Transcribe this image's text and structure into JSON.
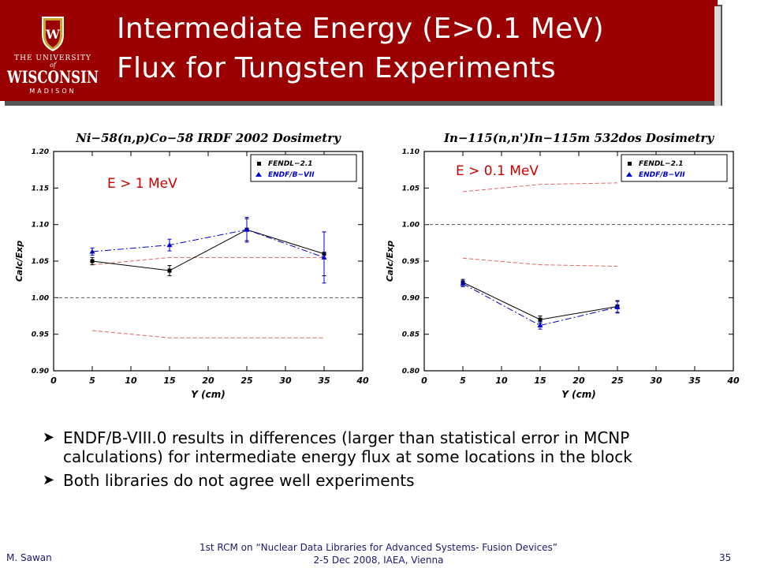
{
  "slide": {
    "title_line1": "Intermediate Energy (E>0.1 MeV)",
    "title_line2": "Flux for Tungsten Experiments",
    "banner_color": "#9b0000"
  },
  "logo": {
    "top_text": "THE UNIVERSITY",
    "of_text": "of",
    "name_text": "WISCONSIN",
    "bottom_text": "MADISON",
    "crest_letter": "W"
  },
  "bullets": [
    {
      "text": "ENDF/B-VIII.0 results in differences (larger than statistical error in MCNP calculations) for intermediate energy flux at some locations in the block"
    },
    {
      "text": "Both libraries do not agree well experiments"
    }
  ],
  "footer": {
    "author": "M. Sawan",
    "conference_line1": "1st RCM on “Nuclear Data Libraries for Advanced Systems- Fusion Devices”",
    "conference_line2": "2-5 Dec 2008, IAEA, Vienna",
    "page": "35"
  },
  "colors": {
    "fendl": "#000000",
    "endf": "#0000cc",
    "band": "#e06060",
    "reference": "#555555"
  },
  "chart_data": [
    {
      "type": "line",
      "title": "Ni−58(n,p)Co−58 IRDF 2002 Dosimetry",
      "annotation": "E > 1 MeV",
      "xlabel": "Y (cm)",
      "ylabel": "Calc/Exp",
      "xlim": [
        0,
        40
      ],
      "ylim": [
        0.9,
        1.2
      ],
      "xticks": [
        0,
        5,
        10,
        15,
        20,
        25,
        30,
        35,
        40
      ],
      "yticks": [
        0.9,
        0.95,
        1.0,
        1.05,
        1.1,
        1.15,
        1.2
      ],
      "reference_line": 1.0,
      "legend_position": "top-right",
      "series": [
        {
          "name": "FENDL−2.1",
          "style": "fendl",
          "x": [
            5,
            15,
            25,
            35
          ],
          "y": [
            1.05,
            1.037,
            1.093,
            1.06
          ],
          "err": [
            0.005,
            0.007,
            0.015,
            0.03
          ]
        },
        {
          "name": "ENDF/B−VII",
          "style": "endf",
          "x": [
            5,
            15,
            25,
            35
          ],
          "y": [
            1.063,
            1.072,
            1.093,
            1.055
          ],
          "err": [
            0.005,
            0.008,
            0.017,
            0.035
          ]
        }
      ],
      "bands": [
        {
          "x": [
            5,
            15,
            25,
            35
          ],
          "y": [
            1.045,
            1.055,
            1.055,
            1.055
          ]
        },
        {
          "x": [
            5,
            15,
            25,
            35
          ],
          "y": [
            0.955,
            0.945,
            0.945,
            0.945
          ]
        }
      ]
    },
    {
      "type": "line",
      "title": "In−115(n,n')In−115m 532dos Dosimetry",
      "annotation": "E > 0.1 MeV",
      "xlabel": "Y (cm)",
      "ylabel": "Calc/Exp",
      "xlim": [
        0,
        40
      ],
      "ylim": [
        0.8,
        1.1
      ],
      "xticks": [
        0,
        5,
        10,
        15,
        20,
        25,
        30,
        35,
        40
      ],
      "yticks": [
        0.8,
        0.85,
        0.9,
        0.95,
        1.0,
        1.05,
        1.1
      ],
      "reference_line": 1.0,
      "legend_position": "top-right",
      "series": [
        {
          "name": "FENDL−2.1",
          "style": "fendl",
          "x": [
            5,
            15,
            25
          ],
          "y": [
            0.921,
            0.87,
            0.888
          ],
          "err": [
            0.004,
            0.005,
            0.008
          ]
        },
        {
          "name": "ENDF/B−VII",
          "style": "endf",
          "x": [
            5,
            15,
            25
          ],
          "y": [
            0.919,
            0.862,
            0.887
          ],
          "err": [
            0.004,
            0.005,
            0.008
          ]
        }
      ],
      "bands": [
        {
          "x": [
            5,
            15,
            25
          ],
          "y": [
            1.045,
            1.055,
            1.057
          ]
        },
        {
          "x": [
            5,
            15,
            25
          ],
          "y": [
            0.954,
            0.945,
            0.943
          ]
        }
      ]
    }
  ]
}
